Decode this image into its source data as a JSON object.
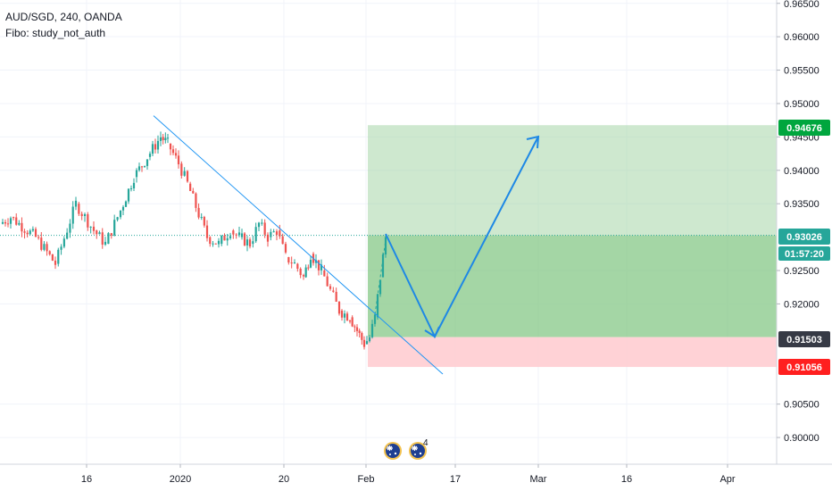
{
  "legend": {
    "symbol_line": "AUD/SGD, 240, OANDA",
    "study_line": "Fibo: study_not_auth"
  },
  "colors": {
    "candle_up": "#26a69a",
    "candle_down": "#ef5350",
    "profit_zone": "#a5d6a7",
    "stop_zone": "#ffcdd2",
    "trend_line": "#2196f3",
    "projection_line": "#1e88e5",
    "target_tag": "#00a63e",
    "price_tag": "#26a69a",
    "entry_tag": "#363a45",
    "stop_tag": "#ff1f1f",
    "grid": "#f0f3fa"
  },
  "chart_data": {
    "type": "candlestick",
    "symbol": "AUD/SGD",
    "timeframe": "240",
    "source": "OANDA",
    "y_axis": {
      "ylim": [
        0.896,
        0.9655
      ],
      "ticks": [
        "0.96500",
        "0.96000",
        "0.95500",
        "0.95000",
        "0.94500",
        "0.94000",
        "0.93500",
        "0.92500",
        "0.92000",
        "0.90500",
        "0.90000"
      ]
    },
    "x_axis": {
      "ticks": [
        "16",
        "2020",
        "20",
        "Feb",
        "17",
        "Mar",
        "16",
        "Apr"
      ]
    },
    "price_series": [
      {
        "x": "Jan 8",
        "close": 0.932
      },
      {
        "x": "Jan 9",
        "close": 0.933
      },
      {
        "x": "Jan 11",
        "close": 0.93
      },
      {
        "x": "Jan 13",
        "close": 0.926
      },
      {
        "x": "Jan 14",
        "close": 0.935
      },
      {
        "x": "Jan 15",
        "close": 0.931
      },
      {
        "x": "Jan 17",
        "close": 0.929
      },
      {
        "x": "Jan 19",
        "close": 0.934
      },
      {
        "x": "Jan 21",
        "close": 0.939
      },
      {
        "x": "Jan 23",
        "close": 0.942
      },
      {
        "x": "Jan 25",
        "close": 0.945
      },
      {
        "x": "Jan 26",
        "close": 0.944
      },
      {
        "x": "Jan 27",
        "close": 0.941
      },
      {
        "x": "Jan 28",
        "close": 0.938
      },
      {
        "x": "Jan 29",
        "close": 0.93
      },
      {
        "x": "Jan 30",
        "close": 0.929
      },
      {
        "x": "Jan 31",
        "close": 0.931
      },
      {
        "x": "Feb 1",
        "close": 0.93
      },
      {
        "x": "Feb 2",
        "close": 0.929
      },
      {
        "x": "Feb 3",
        "close": 0.932
      },
      {
        "x": "Feb 4",
        "close": 0.93
      },
      {
        "x": "Feb 5",
        "close": 0.931
      },
      {
        "x": "Feb 6",
        "close": 0.927
      },
      {
        "x": "Feb 7",
        "close": 0.926
      },
      {
        "x": "Feb 8",
        "close": 0.924
      },
      {
        "x": "Feb 9",
        "close": 0.9275
      },
      {
        "x": "Feb 10",
        "close": 0.925
      },
      {
        "x": "Feb 11",
        "close": 0.922
      },
      {
        "x": "Feb 12",
        "close": 0.919
      },
      {
        "x": "Feb 13",
        "close": 0.918
      },
      {
        "x": "Feb 14",
        "close": 0.916
      },
      {
        "x": "Feb 15",
        "close": 0.914
      },
      {
        "x": "Feb 16",
        "close": 0.915
      },
      {
        "x": "Feb 17",
        "close": 0.918
      },
      {
        "x": "Feb 18",
        "close": 0.924
      },
      {
        "x": "Feb 19",
        "close": 0.93
      }
    ],
    "levels": {
      "target": 0.94676,
      "current": 0.93026,
      "entry": 0.91503,
      "stop": 0.91056
    },
    "labels": {
      "target": "0.94676",
      "current": "0.93026",
      "countdown": "01:57:20",
      "entry": "0.91503",
      "stop": "0.91056",
      "event_count": "4"
    },
    "position_tool": {
      "x_start": "Feb 19",
      "x_end": "Apr 30"
    },
    "trend_line": [
      {
        "x": "Jan 22",
        "y": 0.9455
      },
      {
        "x": "Feb 25",
        "y": 0.9095
      }
    ],
    "projection_path": [
      {
        "x": "Feb 20",
        "y": 0.931
      },
      {
        "x": "Feb 25",
        "y": 0.9153
      },
      {
        "x": "Mar 1",
        "y": 0.945
      }
    ]
  }
}
